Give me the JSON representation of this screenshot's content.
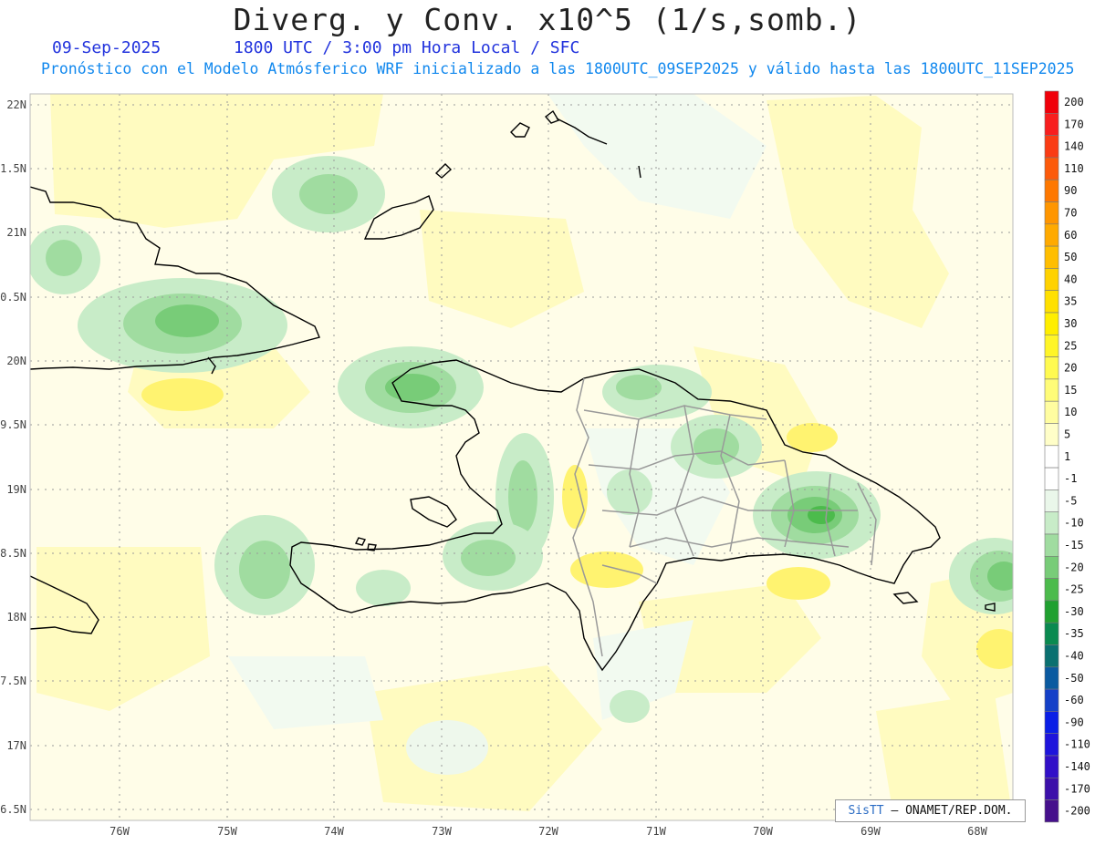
{
  "header": {
    "title": "Diverg. y Conv. x10^5 (1/s,somb.)",
    "date": "09-Sep-2025",
    "valid_time": "1800 UTC / 3:00 pm Hora Local / SFC",
    "forecast_note": "Pronóstico con el Modelo Atmósferico WRF inicializado a las 1800UTC_09SEP2025 y válido hasta las  1800UTC_11SEP2025"
  },
  "map": {
    "lat_labels": [
      "22N",
      "1.5N",
      "21N",
      "0.5N",
      "20N",
      "9.5N",
      "19N",
      "8.5N",
      "18N",
      "7.5N",
      "17N",
      "6.5N"
    ],
    "lon_labels": [
      "76W",
      "75W",
      "74W",
      "73W",
      "72W",
      "71W",
      "70W",
      "69W",
      "68W"
    ]
  },
  "colorbar": {
    "labels": [
      "200",
      "170",
      "140",
      "110",
      "90",
      "70",
      "60",
      "50",
      "40",
      "35",
      "30",
      "25",
      "20",
      "15",
      "10",
      "5",
      "1",
      "-1",
      "-5",
      "-10",
      "-15",
      "-20",
      "-25",
      "-30",
      "-35",
      "-40",
      "-50",
      "-60",
      "-90",
      "-110",
      "-140",
      "-170",
      "-200"
    ],
    "colors": [
      "#f0000a",
      "#f81e1e",
      "#fa3c14",
      "#fc5a0a",
      "#fe7800",
      "#ff9600",
      "#ffaa00",
      "#ffbe00",
      "#ffd200",
      "#ffe000",
      "#ffee00",
      "#fff528",
      "#fffa50",
      "#fffc78",
      "#fffda0",
      "#fffec8",
      "#ffffff",
      "#ffffff",
      "#eaf7ea",
      "#c8ecc8",
      "#a0dca0",
      "#78cc78",
      "#4cbb4c",
      "#20a030",
      "#0a8a50",
      "#0a7070",
      "#0a5aa0",
      "#1440c8",
      "#0a1ee6",
      "#1e14dc",
      "#3210c8",
      "#3c10aa",
      "#46108c"
    ]
  },
  "credit": {
    "brand": "SisTT",
    "text": " – ONAMET/REP.DOM."
  }
}
